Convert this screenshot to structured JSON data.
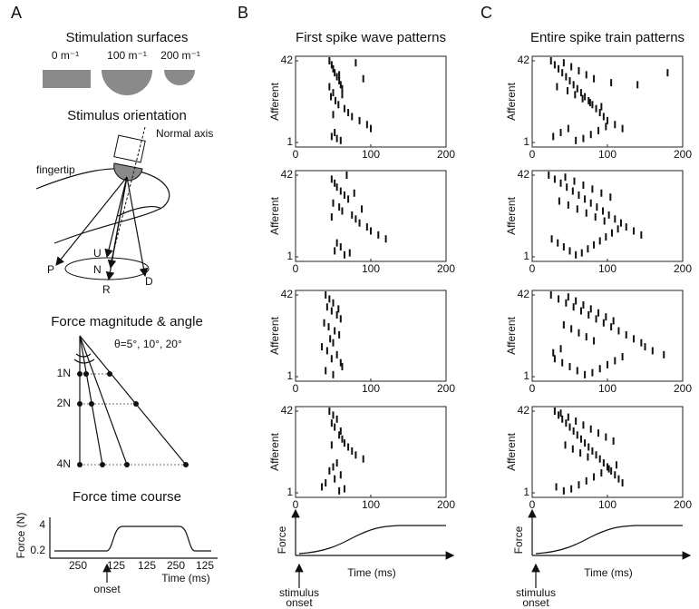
{
  "panel_a": {
    "label": "A",
    "surfaces_title": "Stimulation surfaces",
    "surfaces": [
      "0 m⁻¹",
      "100 m⁻¹",
      "200 m⁻¹"
    ],
    "orientation_title": "Stimulus orientation",
    "normal_axis": "Normal axis",
    "fingertip": "fingertip",
    "directions": [
      "U",
      "N",
      "R",
      "P",
      "D"
    ],
    "magnitude_title": "Force magnitude & angle",
    "angles": "θ=5°, 10°, 20°",
    "forces": [
      "1N",
      "2N",
      "4N"
    ],
    "time_course_title": "Force time course",
    "force_axis": "Force (N)",
    "force_ticks": [
      "4",
      "0.2"
    ],
    "time_ticks": [
      "250",
      "125",
      "125",
      "250",
      "125"
    ],
    "onset": "onset",
    "time_label": "Time (ms)"
  },
  "panel_b": {
    "label": "B",
    "force_label": "Force",
    "time_label": "Time (ms)",
    "onset": [
      "stimulus",
      "onset"
    ]
  },
  "panel_c": {
    "label": "C",
    "force_label": "Force",
    "time_label": "Time (ms)",
    "onset": [
      "stimulus",
      "onset"
    ]
  },
  "chart_data": [
    {
      "type": "scatter",
      "title": "First spike wave patterns",
      "y_label": "Afferent",
      "xlim": [
        0,
        200
      ],
      "xticks": [
        0,
        100,
        200
      ],
      "ylim": [
        1,
        42
      ],
      "yticks": [
        1,
        42
      ],
      "x": [
        45,
        48,
        50,
        52,
        55,
        58,
        60,
        62,
        50,
        47,
        53,
        57,
        65,
        70,
        75,
        85,
        95,
        100,
        52,
        48,
        55,
        60,
        58,
        45,
        62,
        50,
        80,
        90
      ],
      "y": [
        42,
        40,
        38,
        36,
        34,
        32,
        30,
        28,
        26,
        24,
        22,
        20,
        18,
        16,
        14,
        12,
        10,
        8,
        6,
        4,
        3,
        2,
        35,
        29,
        25,
        15,
        41,
        33
      ]
    },
    {
      "type": "scatter",
      "y_label": "Afferent",
      "xlim": [
        0,
        200
      ],
      "xticks": [
        0,
        100,
        200
      ],
      "ylim": [
        1,
        42
      ],
      "yticks": [
        1,
        42
      ],
      "x": [
        48,
        52,
        55,
        60,
        65,
        70,
        50,
        58,
        62,
        75,
        80,
        85,
        95,
        100,
        110,
        120,
        55,
        60,
        52,
        72,
        68,
        48,
        78,
        88,
        65
      ],
      "y": [
        40,
        38,
        36,
        34,
        32,
        30,
        28,
        26,
        24,
        22,
        20,
        18,
        16,
        14,
        12,
        10,
        8,
        6,
        4,
        3,
        42,
        21,
        33,
        25,
        2
      ]
    },
    {
      "type": "scatter",
      "y_label": "Afferent",
      "xlim": [
        0,
        200
      ],
      "xticks": [
        0,
        100,
        200
      ],
      "ylim": [
        1,
        42
      ],
      "yticks": [
        1,
        42
      ],
      "x": [
        40,
        45,
        50,
        42,
        48,
        55,
        60,
        38,
        44,
        52,
        58,
        46,
        50,
        35,
        42,
        55,
        48,
        60,
        62,
        40,
        50,
        57
      ],
      "y": [
        42,
        40,
        38,
        36,
        34,
        32,
        30,
        28,
        26,
        24,
        22,
        20,
        18,
        16,
        14,
        12,
        10,
        8,
        6,
        4,
        2,
        35
      ]
    },
    {
      "type": "scatter",
      "y_label": "Afferent",
      "xlim": [
        0,
        200
      ],
      "xticks": [
        0,
        100,
        200
      ],
      "ylim": [
        1,
        42
      ],
      "yticks": [
        1,
        42
      ],
      "x": [
        45,
        50,
        55,
        48,
        52,
        60,
        58,
        62,
        65,
        70,
        75,
        80,
        90,
        55,
        50,
        45,
        60,
        52,
        40,
        35,
        65,
        58,
        48
      ],
      "y": [
        42,
        40,
        38,
        36,
        34,
        32,
        30,
        28,
        26,
        24,
        22,
        20,
        18,
        16,
        14,
        12,
        10,
        8,
        6,
        4,
        3,
        2,
        25
      ]
    },
    {
      "type": "scatter",
      "title": "Entire spike train patterns",
      "y_label": "Afferent",
      "xlim": [
        0,
        200
      ],
      "xticks": [
        0,
        100,
        200
      ],
      "ylim": [
        1,
        42
      ],
      "yticks": [
        1,
        42
      ],
      "x": [
        25,
        30,
        35,
        40,
        45,
        50,
        55,
        60,
        65,
        70,
        75,
        80,
        85,
        90,
        95,
        100,
        110,
        120,
        140,
        180,
        28,
        38,
        48,
        58,
        68,
        78,
        88,
        98,
        42,
        52,
        62,
        72,
        82,
        105,
        33,
        47,
        57,
        67,
        77,
        92
      ],
      "y": [
        42,
        40,
        38,
        36,
        34,
        32,
        30,
        28,
        26,
        24,
        22,
        20,
        18,
        16,
        14,
        12,
        10,
        8,
        30,
        36,
        4,
        6,
        8,
        2,
        3,
        5,
        7,
        9,
        41,
        39,
        37,
        35,
        33,
        31,
        29,
        27,
        25,
        23,
        21,
        19
      ]
    },
    {
      "type": "scatter",
      "y_label": "Afferent",
      "xlim": [
        0,
        200
      ],
      "xticks": [
        0,
        100,
        200
      ],
      "ylim": [
        1,
        42
      ],
      "yticks": [
        1,
        42
      ],
      "x": [
        22,
        30,
        38,
        46,
        54,
        62,
        70,
        78,
        86,
        94,
        102,
        110,
        118,
        125,
        135,
        145,
        26,
        34,
        42,
        50,
        58,
        66,
        74,
        82,
        90,
        98,
        106,
        114,
        44,
        56,
        68,
        80,
        92,
        104,
        36,
        48,
        60,
        72,
        84,
        96
      ],
      "y": [
        42,
        40,
        38,
        36,
        34,
        32,
        30,
        28,
        26,
        24,
        22,
        20,
        18,
        16,
        14,
        12,
        10,
        8,
        6,
        4,
        2,
        3,
        5,
        7,
        9,
        11,
        13,
        15,
        41,
        39,
        37,
        35,
        33,
        31,
        29,
        27,
        25,
        23,
        21,
        19
      ]
    },
    {
      "type": "scatter",
      "y_label": "Afferent",
      "xlim": [
        0,
        200
      ],
      "xticks": [
        0,
        100,
        200
      ],
      "ylim": [
        1,
        42
      ],
      "yticks": [
        1,
        42
      ],
      "x": [
        25,
        35,
        45,
        55,
        65,
        75,
        85,
        95,
        105,
        115,
        125,
        135,
        145,
        150,
        160,
        175,
        30,
        40,
        50,
        60,
        70,
        80,
        90,
        100,
        110,
        120,
        28,
        38,
        48,
        58,
        68,
        78,
        88,
        98,
        108,
        42,
        52,
        62,
        72,
        82
      ],
      "y": [
        42,
        40,
        38,
        36,
        34,
        32,
        30,
        28,
        26,
        24,
        22,
        20,
        18,
        16,
        14,
        12,
        10,
        8,
        6,
        4,
        2,
        3,
        5,
        7,
        9,
        11,
        13,
        15,
        41,
        39,
        37,
        35,
        33,
        31,
        29,
        27,
        25,
        23,
        21,
        19
      ]
    },
    {
      "type": "scatter",
      "y_label": "Afferent",
      "xlim": [
        0,
        200
      ],
      "xticks": [
        0,
        100,
        200
      ],
      "ylim": [
        1,
        42
      ],
      "yticks": [
        1,
        42
      ],
      "x": [
        30,
        35,
        40,
        45,
        50,
        55,
        60,
        65,
        70,
        75,
        80,
        85,
        90,
        95,
        100,
        105,
        110,
        115,
        120,
        32,
        42,
        52,
        62,
        72,
        82,
        92,
        102,
        112,
        38,
        48,
        58,
        68,
        78,
        88,
        98,
        108,
        44,
        54,
        64,
        74
      ],
      "y": [
        42,
        40,
        38,
        36,
        34,
        32,
        30,
        28,
        26,
        24,
        22,
        20,
        18,
        16,
        14,
        12,
        10,
        8,
        6,
        4,
        2,
        3,
        5,
        7,
        9,
        11,
        13,
        15,
        41,
        39,
        37,
        35,
        33,
        31,
        29,
        27,
        25,
        23,
        21,
        19
      ]
    }
  ]
}
